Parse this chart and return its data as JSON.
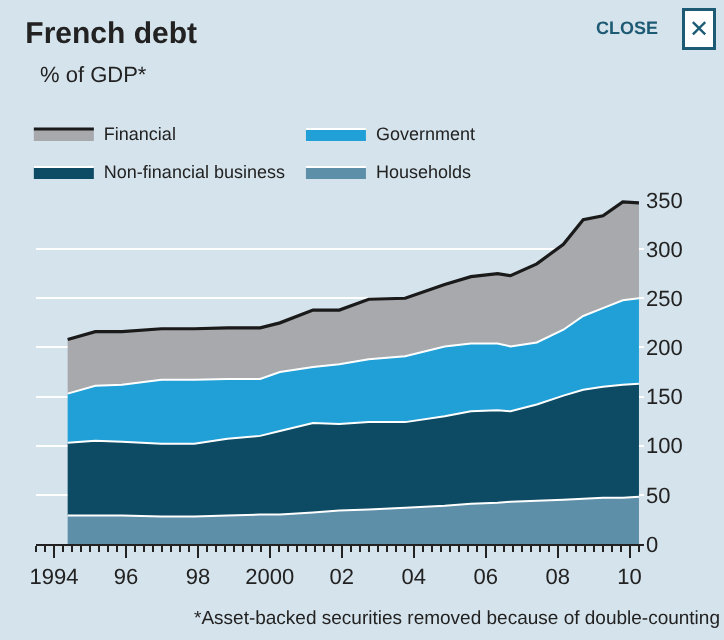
{
  "chart_data": {
    "type": "area",
    "stacked": true,
    "title": "French debt",
    "subtitle": "% of GDP*",
    "x": [
      1994.38,
      1995.15,
      1995.89,
      1996.99,
      1997.9,
      1998.82,
      1999.73,
      2000.28,
      2001.2,
      2001.93,
      2002.75,
      2003.76,
      2004.86,
      2005.59,
      2006.33,
      2006.69,
      2007.42,
      2008.16,
      2008.71,
      2009.26,
      2009.81,
      2010.26
    ],
    "series": [
      {
        "name": "Households",
        "color": "#5e8fa8",
        "values": [
          29,
          29,
          29,
          28,
          28,
          29,
          30,
          30,
          32,
          34,
          35,
          37,
          39,
          41,
          42,
          43,
          44,
          45,
          46,
          47,
          47,
          48
        ]
      },
      {
        "name": "Non-financial business",
        "color": "#0d4a63",
        "values": [
          74,
          76,
          75,
          74,
          74,
          78,
          80,
          85,
          91,
          88,
          89,
          87,
          91,
          94,
          94,
          92,
          98,
          106,
          111,
          113,
          115,
          115
        ]
      },
      {
        "name": "Government",
        "color": "#20a0d6",
        "values": [
          50,
          56,
          58,
          65,
          65,
          61,
          58,
          60,
          57,
          61,
          64,
          67,
          71,
          69,
          68,
          66,
          63,
          67,
          75,
          80,
          86,
          87
        ]
      },
      {
        "name": "Financial",
        "color": "#a7a9ac",
        "values": [
          55,
          55,
          54,
          52,
          52,
          52,
          52,
          50,
          58,
          55,
          61,
          59,
          63,
          68,
          71,
          72,
          80,
          87,
          98,
          94,
          100,
          97
        ]
      }
    ],
    "xlim": [
      1993.5,
      2010.4
    ],
    "xticks": [
      {
        "value": 1994,
        "label": "1994"
      },
      {
        "value": 1996,
        "label": "96"
      },
      {
        "value": 1998,
        "label": "98"
      },
      2000,
      {
        "value": 2002,
        "label": "02"
      },
      {
        "value": 2004,
        "label": "04"
      },
      {
        "value": 2006,
        "label": "06"
      },
      {
        "value": 2008,
        "label": "08"
      },
      {
        "value": 2010,
        "label": "10"
      }
    ],
    "ylim": [
      0,
      350
    ],
    "yticks": [
      0,
      50,
      100,
      150,
      200,
      250,
      300,
      350
    ],
    "grid": "y",
    "legend": "top",
    "annotations": [
      "*Asset-backed securities removed because of double-counting",
      "CLOSE",
      "✕"
    ]
  }
}
